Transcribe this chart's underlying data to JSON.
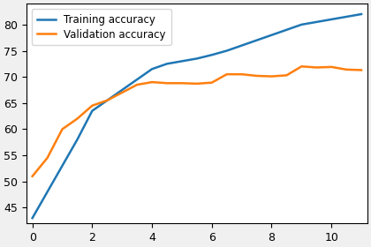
{
  "training_x": [
    0,
    0.5,
    1,
    1.5,
    2,
    2.5,
    3,
    3.5,
    4,
    4.5,
    5,
    5.5,
    6,
    6.5,
    7,
    7.5,
    8,
    8.5,
    9,
    9.5,
    10,
    10.5,
    11
  ],
  "training_y": [
    43,
    48,
    53,
    58,
    63.5,
    65.5,
    67.5,
    69.5,
    71.5,
    72.5,
    73.0,
    73.5,
    74.2,
    75.0,
    76.0,
    77.0,
    78.0,
    79.0,
    80.0,
    80.5,
    81.0,
    81.5,
    82.0
  ],
  "validation_x": [
    0,
    0.5,
    1,
    1.5,
    2,
    2.5,
    3,
    3.5,
    4,
    4.5,
    5,
    5.5,
    6,
    6.5,
    7,
    7.5,
    8,
    8.5,
    9,
    9.5,
    10,
    10.5,
    11
  ],
  "validation_y": [
    51,
    54.5,
    60,
    62,
    64.5,
    65.5,
    67.0,
    68.5,
    69.0,
    68.8,
    68.8,
    68.7,
    68.9,
    70.5,
    70.5,
    70.2,
    70.1,
    70.3,
    72.0,
    71.8,
    71.9,
    71.4,
    71.3
  ],
  "training_color": "#1f77b4",
  "validation_color": "#ff7f0e",
  "training_label": "Training accuracy",
  "validation_label": "Validation accuracy",
  "xlim": [
    -0.2,
    11.2
  ],
  "ylim": [
    42,
    84
  ],
  "xticks": [
    0,
    2,
    4,
    6,
    8,
    10
  ],
  "yticks": [
    45,
    50,
    55,
    60,
    65,
    70,
    75,
    80
  ],
  "bg_color": "#ffffff",
  "fig_bg_color": "#f0f0f0",
  "linewidth": 1.8
}
